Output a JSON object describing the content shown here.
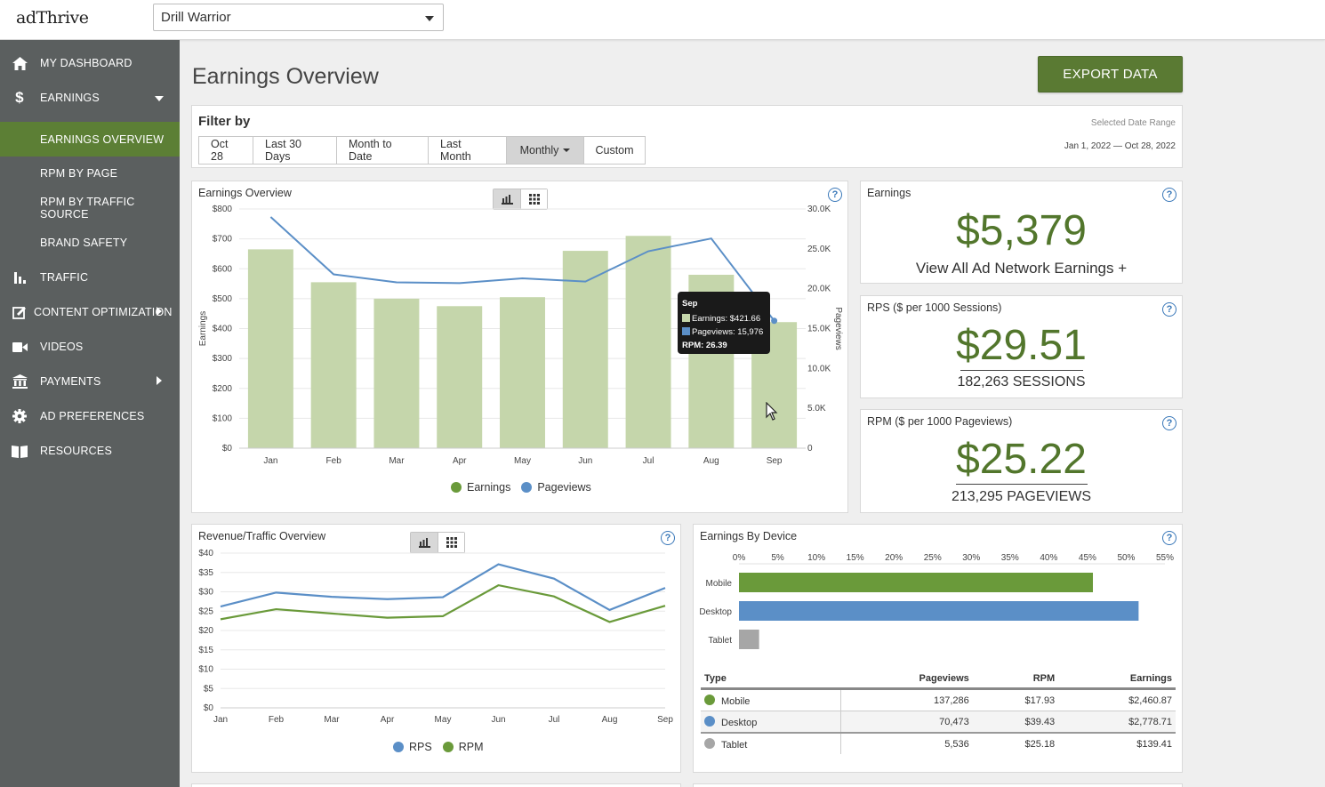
{
  "app": {
    "logo": "adThrive",
    "site_selected": "Drill Warrior"
  },
  "sidebar": {
    "items": [
      {
        "label": "MY DASHBOARD",
        "icon": "home-icon"
      },
      {
        "label": "EARNINGS",
        "icon": "dollar-icon"
      },
      {
        "label": "EARNINGS OVERVIEW",
        "icon": ""
      },
      {
        "label": "RPM BY PAGE",
        "icon": ""
      },
      {
        "label": "RPM BY TRAFFIC SOURCE",
        "icon": ""
      },
      {
        "label": "BRAND SAFETY",
        "icon": ""
      },
      {
        "label": "TRAFFIC",
        "icon": "bar-chart-icon"
      },
      {
        "label": "CONTENT OPTIMIZATION",
        "icon": "edit-icon"
      },
      {
        "label": "VIDEOS",
        "icon": "video-icon"
      },
      {
        "label": "PAYMENTS",
        "icon": "bank-icon"
      },
      {
        "label": "AD PREFERENCES",
        "icon": "gear-icon"
      },
      {
        "label": "RESOURCES",
        "icon": "book-icon"
      }
    ]
  },
  "main": {
    "title": "Earnings Overview",
    "export_label": "EXPORT DATA",
    "filter": {
      "title": "Filter by",
      "buttons": [
        "Oct 28",
        "Last 30 Days",
        "Month to Date",
        "Last Month",
        "Monthly",
        "Custom"
      ],
      "selected": "Monthly",
      "date_range_label": "Selected Date Range",
      "date_range_value": "Jan 1, 2022 — Oct 28, 2022"
    }
  },
  "cards": {
    "earnings": {
      "title": "Earnings",
      "value": "$5,379",
      "link": "View All Ad Network Earnings +"
    },
    "rps": {
      "title": "RPS ($ per 1000 Sessions)",
      "value": "$29.51",
      "sub": "182,263 SESSIONS"
    },
    "rpm": {
      "title": "RPM ($ per 1000 Pageviews)",
      "value": "$25.22",
      "sub": "213,295 PAGEVIEWS"
    }
  },
  "tooltip": {
    "title": "Sep",
    "earnings": "Earnings: $421.66",
    "pageviews": "Pageviews: 15,976",
    "rpm": "RPM: 26.39"
  },
  "chart_data": [
    {
      "type": "bar",
      "title": "Earnings Overview",
      "categories": [
        "Jan",
        "Feb",
        "Mar",
        "Apr",
        "May",
        "Jun",
        "Jul",
        "Aug",
        "Sep"
      ],
      "series": [
        {
          "name": "Earnings",
          "kind": "bar",
          "axis": "left",
          "values": [
            665,
            555,
            500,
            475,
            505,
            660,
            710,
            580,
            421.66
          ]
        },
        {
          "name": "Pageviews",
          "kind": "line",
          "axis": "right",
          "values": [
            29000,
            21800,
            20800,
            20700,
            21300,
            20900,
            24700,
            26300,
            15976
          ]
        }
      ],
      "ylabel": "Earnings",
      "y2label": "Pageviews",
      "yticks": [
        "$0",
        "$100",
        "$200",
        "$300",
        "$400",
        "$500",
        "$600",
        "$700",
        "$800"
      ],
      "y2ticks": [
        "0",
        "5.0K",
        "10.0K",
        "15.0K",
        "20.0K",
        "25.0K",
        "30.0K"
      ],
      "ylim": [
        0,
        800
      ],
      "y2lim": [
        0,
        30000
      ],
      "colors": {
        "bar": "#c5d6ab",
        "line": "#5b8fc7"
      },
      "legend": "bottom"
    },
    {
      "type": "line",
      "title": "Revenue/Traffic Overview",
      "categories": [
        "Jan",
        "Feb",
        "Mar",
        "Apr",
        "May",
        "Jun",
        "Jul",
        "Aug",
        "Sep"
      ],
      "series": [
        {
          "name": "RPS",
          "color": "#5b8fc7",
          "values": [
            26.2,
            29.8,
            28.7,
            28.1,
            28.6,
            37.1,
            33.4,
            25.3,
            31.0
          ]
        },
        {
          "name": "RPM",
          "color": "#6a9a3a",
          "values": [
            22.9,
            25.5,
            24.4,
            23.3,
            23.7,
            31.7,
            28.8,
            22.2,
            26.4
          ]
        }
      ],
      "yticks": [
        "$0",
        "$5",
        "$10",
        "$15",
        "$20",
        "$25",
        "$30",
        "$35",
        "$40"
      ],
      "ylim": [
        0,
        40
      ],
      "legend": "bottom"
    },
    {
      "type": "bar",
      "orientation": "horizontal",
      "title": "Earnings By Device",
      "categories": [
        "Mobile",
        "Desktop",
        "Tablet"
      ],
      "values": [
        45.7,
        51.6,
        2.6
      ],
      "colors": [
        "#6a9a3a",
        "#5b8fc7",
        "#a6a6a6"
      ],
      "xticks": [
        "0%",
        "5%",
        "10%",
        "15%",
        "20%",
        "25%",
        "30%",
        "35%",
        "40%",
        "45%",
        "50%",
        "55%"
      ],
      "xlim": [
        0,
        55
      ]
    }
  ],
  "device_table": {
    "headers": [
      "Type",
      "Pageviews",
      "RPM",
      "Earnings"
    ],
    "rows": [
      {
        "type": "Mobile",
        "pageviews": "137,286",
        "rpm": "$17.93",
        "earnings": "$2,460.87",
        "color": "#6a9a3a"
      },
      {
        "type": "Desktop",
        "pageviews": "70,473",
        "rpm": "$39.43",
        "earnings": "$2,778.71",
        "color": "#5b8fc7"
      },
      {
        "type": "Tablet",
        "pageviews": "5,536",
        "rpm": "$25.18",
        "earnings": "$139.41",
        "color": "#a6a6a6"
      }
    ]
  }
}
